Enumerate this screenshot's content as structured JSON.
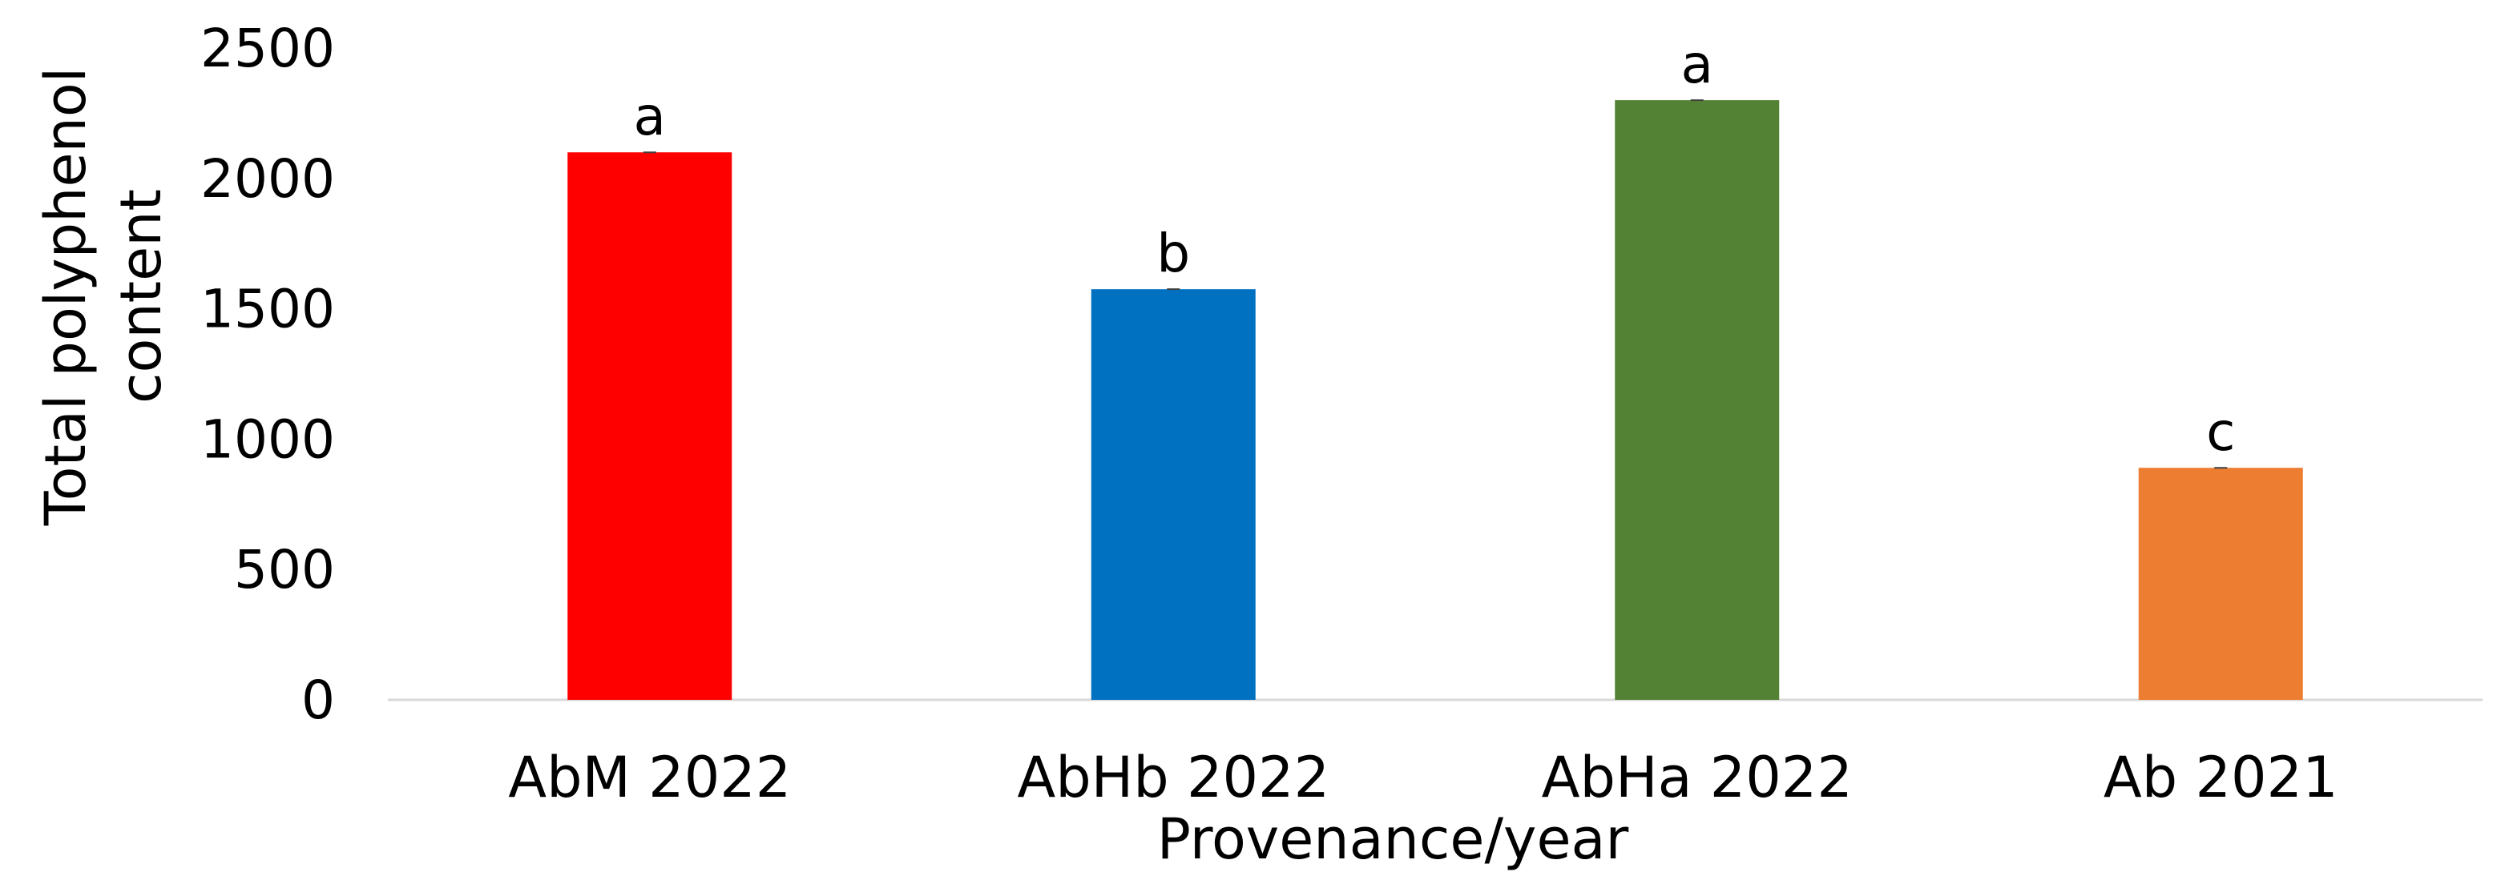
{
  "chart_data": {
    "type": "bar",
    "title": "",
    "xlabel": "Provenance/year",
    "ylabel_lines": [
      "Total polyphenol",
      "content"
    ],
    "categories": [
      "AbM 2022",
      "AbHb 2022",
      "AbHa 2022",
      "Ab 2021"
    ],
    "values": [
      2100,
      1575,
      2300,
      890
    ],
    "significance_letters": [
      "a",
      "b",
      "a",
      "c"
    ],
    "colors": [
      "#ff0000",
      "#0070c0",
      "#548235",
      "#ed7d31"
    ],
    "yticks": [
      0,
      500,
      1000,
      1500,
      2000,
      2500
    ],
    "ylim": [
      0,
      2500
    ],
    "grid": false,
    "legend": "none"
  }
}
